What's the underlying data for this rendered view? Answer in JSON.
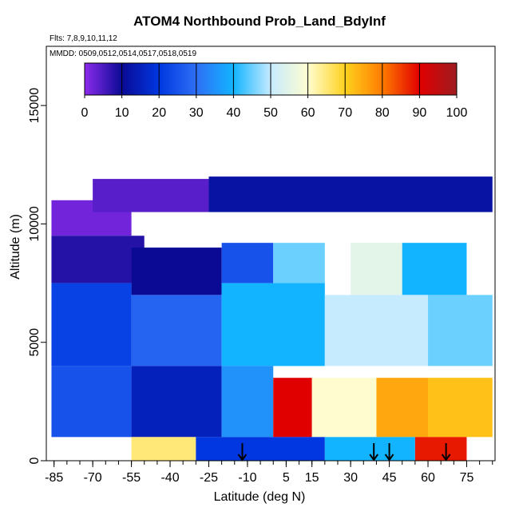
{
  "chart_data": {
    "type": "heatmap",
    "title": "ATOM4 Northbound Prob_Land_BdyInf",
    "notes": [
      "Flts: 7,8,9,10,11,12",
      "MMDD: 0509,0512,0514,0517,0518,0519"
    ],
    "xlabel": "Latitude (deg N)",
    "ylabel": "Altitude (m)",
    "xlim": [
      -88,
      86
    ],
    "ylim": [
      0,
      17500
    ],
    "x_ticks": [
      -85,
      -70,
      -55,
      -40,
      -25,
      -10,
      5,
      15,
      30,
      45,
      60,
      75
    ],
    "y_ticks": [
      0,
      5000,
      10000,
      15000
    ],
    "colorbar": {
      "ticks": [
        0,
        10,
        20,
        30,
        40,
        50,
        60,
        70,
        80,
        90,
        100
      ],
      "colors": [
        "#8C2BEC",
        "#0A0A95",
        "#0037E0",
        "#2E6FF5",
        "#12B4FF",
        "#C6EBFF",
        "#FFFDD0",
        "#FFD21E",
        "#FF7B00",
        "#E10000",
        "#9E1C20"
      ]
    },
    "arrows_x": [
      -12,
      39,
      45,
      67
    ],
    "regions": [
      {
        "x": [
          -86,
          -55
        ],
        "y": [
          9500,
          11000
        ],
        "value": 2
      },
      {
        "x": [
          -70,
          -25
        ],
        "y": [
          10500,
          11900
        ],
        "value": 4
      },
      {
        "x": [
          -25,
          85
        ],
        "y": [
          10500,
          12000
        ],
        "value": 12
      },
      {
        "x": [
          -86,
          -50
        ],
        "y": [
          7500,
          9500
        ],
        "value": 8
      },
      {
        "x": [
          -55,
          -20
        ],
        "y": [
          7000,
          9000
        ],
        "value": 10
      },
      {
        "x": [
          -20,
          0
        ],
        "y": [
          7500,
          9200
        ],
        "value": 25
      },
      {
        "x": [
          0,
          20
        ],
        "y": [
          7500,
          9200
        ],
        "value": 45
      },
      {
        "x": [
          30,
          50
        ],
        "y": [
          7000,
          9200
        ],
        "value": 55
      },
      {
        "x": [
          50,
          75
        ],
        "y": [
          7000,
          9200
        ],
        "value": 40
      },
      {
        "x": [
          -86,
          -55
        ],
        "y": [
          4000,
          7500
        ],
        "value": 22
      },
      {
        "x": [
          -55,
          -20
        ],
        "y": [
          4000,
          7000
        ],
        "value": 28
      },
      {
        "x": [
          -20,
          20
        ],
        "y": [
          4000,
          7500
        ],
        "value": 40
      },
      {
        "x": [
          20,
          60
        ],
        "y": [
          4000,
          7000
        ],
        "value": 50
      },
      {
        "x": [
          60,
          85
        ],
        "y": [
          4000,
          7000
        ],
        "value": 45
      },
      {
        "x": [
          -86,
          -55
        ],
        "y": [
          1000,
          4000
        ],
        "value": 25
      },
      {
        "x": [
          -55,
          -20
        ],
        "y": [
          1000,
          4000
        ],
        "value": 15
      },
      {
        "x": [
          -20,
          0
        ],
        "y": [
          1000,
          4000
        ],
        "value": 35
      },
      {
        "x": [
          0,
          15
        ],
        "y": [
          1000,
          3500
        ],
        "value": 90
      },
      {
        "x": [
          15,
          40
        ],
        "y": [
          1000,
          3500
        ],
        "value": 60
      },
      {
        "x": [
          40,
          60
        ],
        "y": [
          1000,
          3500
        ],
        "value": 75
      },
      {
        "x": [
          60,
          85
        ],
        "y": [
          1000,
          3500
        ],
        "value": 72
      },
      {
        "x": [
          -55,
          -30
        ],
        "y": [
          0,
          1000
        ],
        "value": 65
      },
      {
        "x": [
          -30,
          20
        ],
        "y": [
          0,
          1000
        ],
        "value": 20
      },
      {
        "x": [
          20,
          55
        ],
        "y": [
          0,
          1000
        ],
        "value": 40
      },
      {
        "x": [
          55,
          75
        ],
        "y": [
          0,
          1000
        ],
        "value": 88
      }
    ]
  }
}
